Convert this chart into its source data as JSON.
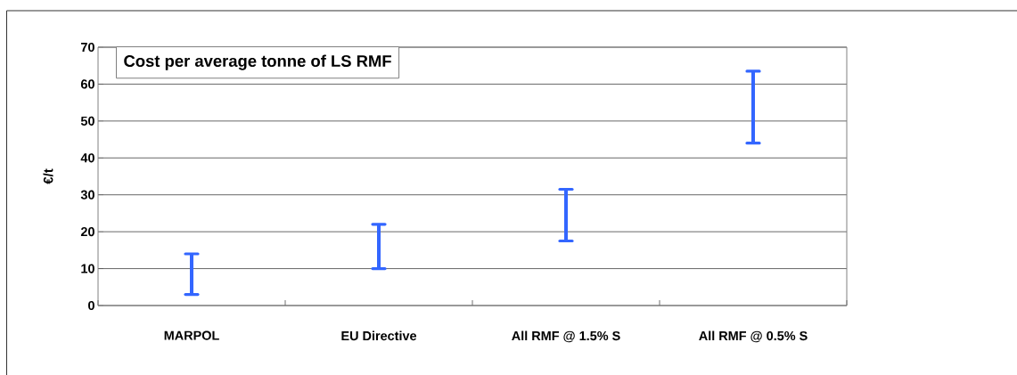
{
  "chart_data": {
    "type": "bar",
    "title": "Cost per average tonne of LS RMF",
    "ylabel": "€/t",
    "categories": [
      "MARPOL",
      "EU Directive",
      "All RMF @ 1.5% S",
      "All RMF @ 0.5% S"
    ],
    "base": [
      3,
      10,
      17.5,
      44
    ],
    "values": [
      11,
      12,
      14,
      19.5
    ],
    "color": "#3366ff",
    "ylim": [
      0,
      70
    ],
    "yticks": [
      0,
      10,
      20,
      30,
      40,
      50,
      60,
      70
    ],
    "grid": "y"
  }
}
